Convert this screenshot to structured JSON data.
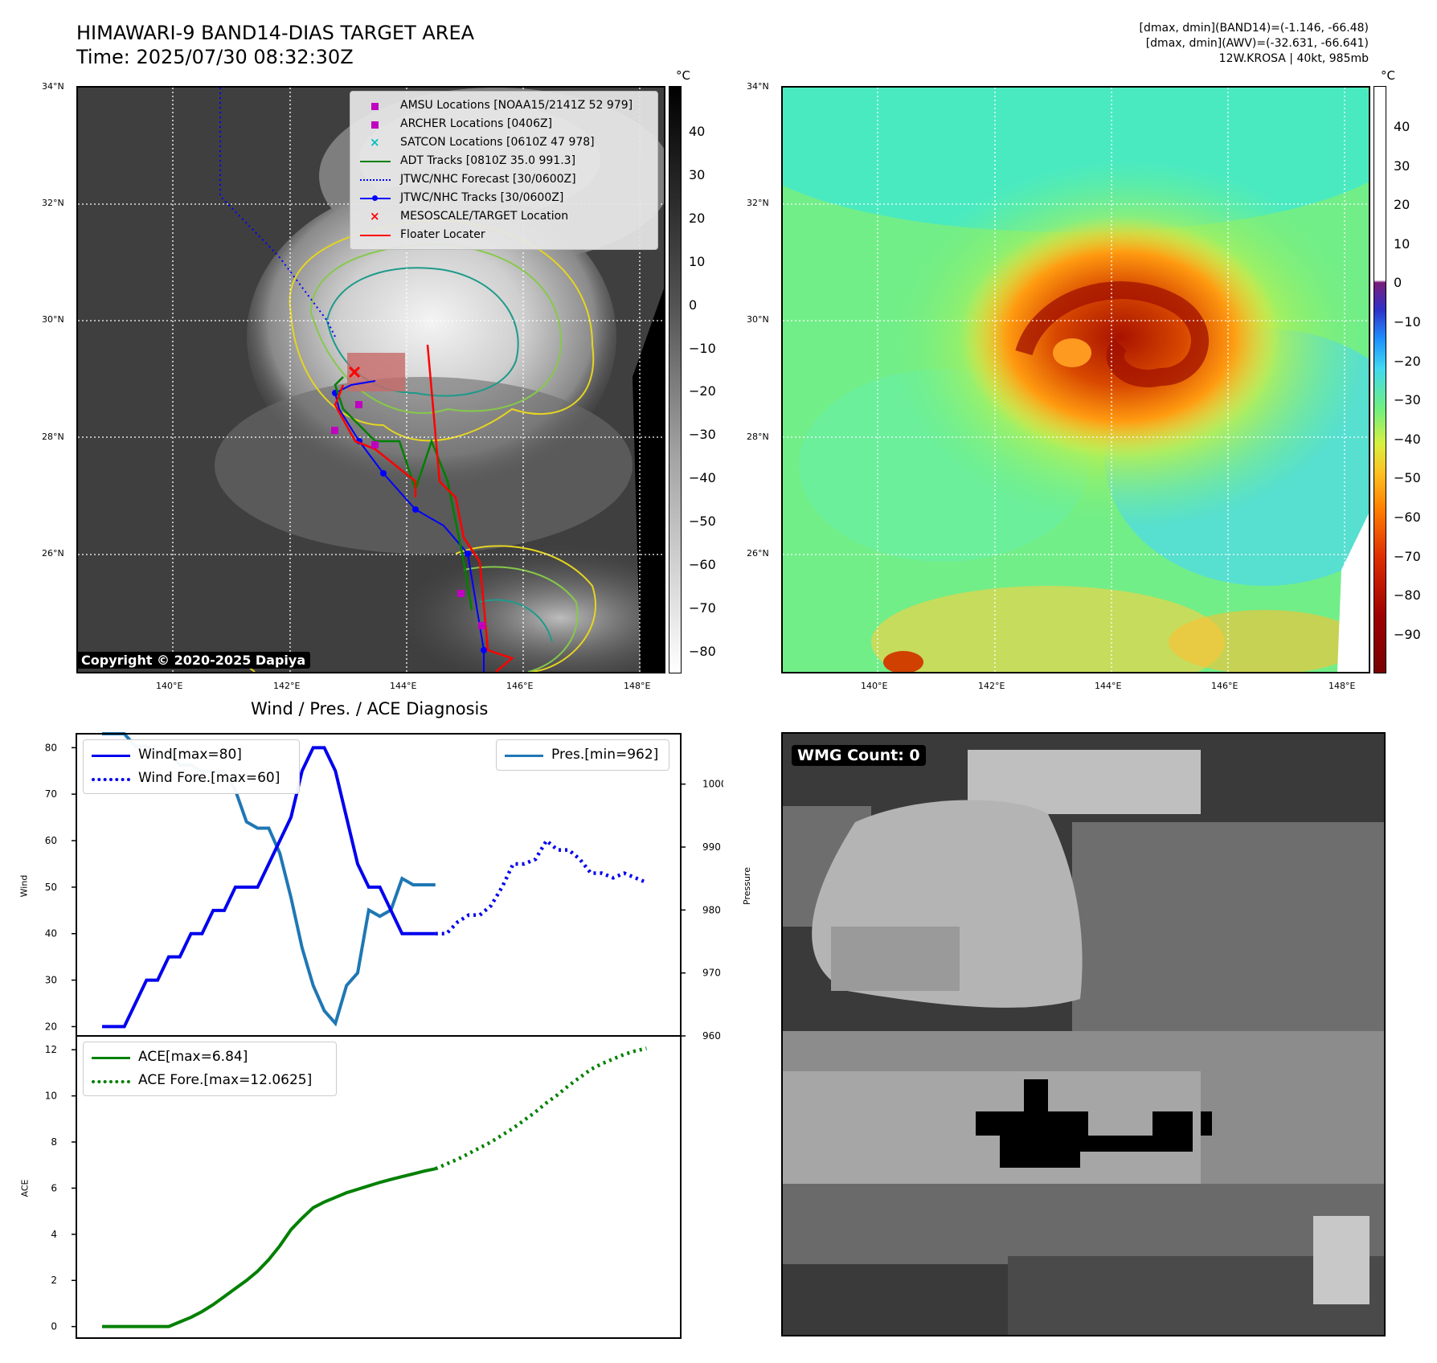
{
  "header": {
    "title_line1": "HIMAWARI-9 BAND14-DIAS TARGET AREA",
    "title_line2": "Time: 2025/07/30 08:32:30Z",
    "info_line1": "[dmax, dmin](BAND14)=(-1.146, -66.48)",
    "info_line2": "[dmax, dmin](AWV)=(-32.631, -66.641)",
    "info_line3": "12W.KROSA | 40kt, 985mb"
  },
  "map": {
    "lat_labels": [
      "34°N",
      "32°N",
      "30°N",
      "28°N",
      "26°N"
    ],
    "lon_labels": [
      "140°E",
      "142°E",
      "144°E",
      "146°E",
      "148°E"
    ],
    "copyright": "Copyright © 2020-2025 Dapiya",
    "legend": [
      {
        "label": "AMSU Locations [NOAA15/2141Z 52 979]",
        "symbol": "square",
        "color": "#c000c0"
      },
      {
        "label": "ARCHER Locations [0406Z]",
        "symbol": "square",
        "color": "#c000c0"
      },
      {
        "label": "SATCON Locations [0610Z 47 978]",
        "symbol": "x",
        "color": "#00c0c0"
      },
      {
        "label": "ADT Tracks [0810Z 35.0 991.3]",
        "symbol": "line",
        "color": "#008000"
      },
      {
        "label": "JTWC/NHC Forecast [30/0600Z]",
        "symbol": "dotted",
        "color": "#0000ff"
      },
      {
        "label": "JTWC/NHC Tracks [30/0600Z]",
        "symbol": "line-dot",
        "color": "#0000ff"
      },
      {
        "label": "MESOSCALE/TARGET Location",
        "symbol": "x",
        "color": "#ff0000"
      },
      {
        "label": "Floater Locater",
        "symbol": "line",
        "color": "#ff0000"
      }
    ]
  },
  "colorbar_ir": {
    "unit": "°C",
    "ticks": [
      "40",
      "30",
      "20",
      "10",
      "0",
      "−10",
      "−20",
      "−30",
      "−40",
      "−50",
      "−60",
      "−70",
      "−80"
    ]
  },
  "colorbar_awv": {
    "unit": "°C",
    "ticks": [
      "40",
      "30",
      "20",
      "10",
      "0",
      "−10",
      "−20",
      "−30",
      "−40",
      "−50",
      "−60",
      "−70",
      "−80",
      "−90"
    ]
  },
  "diag": {
    "title": "Wind / Pres. / ACE Diagnosis",
    "wind_ylabel": "Wind",
    "pres_ylabel": "Pressure",
    "ace_ylabel": "ACE",
    "wind_ticks": [
      "80",
      "70",
      "60",
      "50",
      "40",
      "30",
      "20"
    ],
    "pres_ticks": [
      "1000",
      "990",
      "980",
      "970",
      "960"
    ],
    "ace_ticks": [
      "12",
      "10",
      "8",
      "6",
      "4",
      "2",
      "0"
    ],
    "legend_wind": "Wind[max=80]",
    "legend_wind_fore": "Wind Fore.[max=60]",
    "legend_pres": "Pres.[min=962]",
    "legend_ace": "ACE[max=6.84]",
    "legend_ace_fore": "ACE Fore.[max=12.0625]"
  },
  "wmg": {
    "label": "WMG Count: 0"
  },
  "chart_data": [
    {
      "type": "line",
      "title": "Wind / Pres. / ACE Diagnosis",
      "ylabel": "Wind",
      "ylim": [
        18,
        83
      ],
      "y2label": "Pressure",
      "y2lim": [
        960,
        1008
      ],
      "x": [
        0,
        1,
        2,
        3,
        4,
        5,
        6,
        7,
        8,
        9,
        10,
        11,
        12,
        13,
        14,
        15,
        16,
        17,
        18,
        19,
        20,
        21,
        22,
        23,
        24,
        25,
        26,
        27,
        28,
        29,
        30,
        31,
        32,
        33,
        34,
        35,
        36,
        37,
        38,
        39,
        40,
        41,
        42,
        43,
        44,
        45,
        46,
        47,
        48,
        49
      ],
      "series": [
        {
          "name": "Wind[max=80]",
          "color": "#0000ee",
          "style": "solid",
          "axis": "left",
          "x": [
            0,
            1,
            2,
            3,
            4,
            5,
            6,
            7,
            8,
            9,
            10,
            11,
            12,
            13,
            14,
            15,
            16,
            17,
            18,
            19,
            20,
            21,
            22,
            23,
            24,
            25,
            26,
            27,
            28,
            29,
            30
          ],
          "values": [
            20,
            20,
            20,
            25,
            30,
            30,
            35,
            35,
            40,
            40,
            45,
            45,
            50,
            50,
            50,
            55,
            60,
            65,
            75,
            80,
            80,
            75,
            65,
            55,
            50,
            50,
            45,
            40,
            40,
            40,
            40
          ]
        },
        {
          "name": "Wind Fore.[max=60]",
          "color": "#0000ee",
          "style": "dotted",
          "axis": "left",
          "x": [
            30,
            31,
            32,
            33,
            34,
            35,
            36,
            37,
            38,
            39,
            40,
            41,
            42,
            43,
            44,
            45,
            46,
            47,
            48,
            49
          ],
          "values": [
            40,
            40,
            42.5,
            44,
            44,
            46,
            50,
            55,
            55,
            56,
            60,
            58,
            58,
            56,
            53,
            53,
            52,
            53,
            52,
            51
          ]
        },
        {
          "name": "Pres.[min=962]",
          "color": "#1f77b4",
          "style": "solid",
          "axis": "right",
          "x": [
            0,
            1,
            2,
            3,
            4,
            5,
            6,
            7,
            8,
            9,
            10,
            11,
            12,
            13,
            14,
            15,
            16,
            17,
            18,
            19,
            20,
            21,
            22,
            23,
            24,
            25,
            26,
            27,
            28,
            29,
            30
          ],
          "values": [
            1008,
            1008,
            1008,
            1006,
            1006,
            1005,
            1005,
            1003,
            1003,
            1002,
            1002,
            1002,
            999,
            994,
            993,
            993,
            989,
            982,
            974,
            968,
            964,
            962,
            968,
            970,
            980,
            979,
            980,
            985,
            984,
            984,
            984
          ]
        }
      ]
    },
    {
      "type": "line",
      "ylabel": "ACE",
      "ylim": [
        -0.5,
        12.6
      ],
      "x": [
        0,
        1,
        2,
        3,
        4,
        5,
        6,
        7,
        8,
        9,
        10,
        11,
        12,
        13,
        14,
        15,
        16,
        17,
        18,
        19,
        20,
        21,
        22,
        23,
        24,
        25,
        26,
        27,
        28,
        29,
        30
      ],
      "series": [
        {
          "name": "ACE[max=6.84]",
          "color": "#008000",
          "style": "solid",
          "x": [
            0,
            1,
            2,
            3,
            4,
            5,
            6,
            7,
            8,
            9,
            10,
            11,
            12,
            13,
            14,
            15,
            16,
            17,
            18,
            19,
            20,
            21,
            22,
            23,
            24,
            25,
            26,
            27,
            28,
            29,
            30
          ],
          "values": [
            0,
            0,
            0,
            0,
            0,
            0,
            0,
            0.2,
            0.4,
            0.65,
            0.95,
            1.3,
            1.65,
            2.0,
            2.4,
            2.9,
            3.5,
            4.2,
            4.7,
            5.15,
            5.4,
            5.6,
            5.8,
            5.95,
            6.1,
            6.25,
            6.38,
            6.5,
            6.62,
            6.74,
            6.84
          ]
        },
        {
          "name": "ACE Fore.[max=12.0625]",
          "color": "#008000",
          "style": "dotted",
          "x": [
            30,
            31,
            32,
            33,
            34,
            35,
            36,
            37,
            38,
            39,
            40,
            41,
            42,
            43,
            44,
            45,
            46,
            47,
            48,
            49
          ],
          "values": [
            6.84,
            7.05,
            7.25,
            7.5,
            7.75,
            8.0,
            8.3,
            8.6,
            8.95,
            9.3,
            9.7,
            10.05,
            10.45,
            10.8,
            11.15,
            11.4,
            11.6,
            11.8,
            11.95,
            12.06
          ]
        }
      ]
    }
  ]
}
